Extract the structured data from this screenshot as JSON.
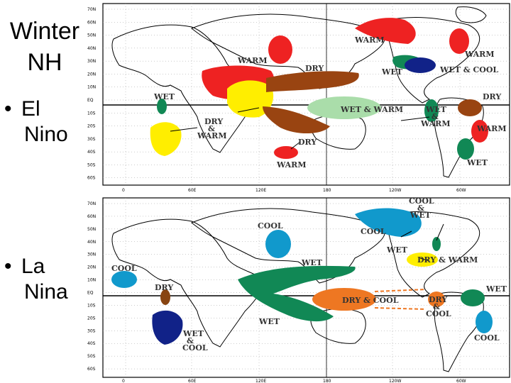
{
  "title": {
    "line1": "Winter",
    "line2": "NH"
  },
  "bullets": [
    {
      "line1": "El",
      "line2": "Nino"
    },
    {
      "line1": "La",
      "line2": "Nina"
    }
  ],
  "colors": {
    "warm": "#ee2222",
    "dry": "#994411",
    "wet": "#118855",
    "cool": "#1199cc",
    "yellow": "#ffee00",
    "navy": "#112288",
    "orange": "#ee7722",
    "lightgreen": "#aaddaa",
    "darkbrown": "#884411"
  },
  "axes": {
    "lat": [
      "70N",
      "60N",
      "50N",
      "40N",
      "30N",
      "20N",
      "10N",
      "EQ",
      "10S",
      "20S",
      "30S",
      "40S",
      "50S",
      "60S"
    ],
    "lon": [
      "0",
      "60E",
      "120E",
      "180",
      "120W",
      "60W"
    ]
  },
  "maps": {
    "el_nino": {
      "labels": {
        "warm_npac": "WARM",
        "warm_asia": "WARM",
        "dry_pac": "DRY",
        "warm_na": "WARM",
        "wet_us": "WET",
        "wet_cool": "WET & COOL",
        "wet_afr": "WET",
        "dry_sam": "DRY",
        "wet_warm": "WET & WARM",
        "wet_warm2_a": "WET",
        "wet_warm2_b": "&",
        "wet_warm2_c": "WARM",
        "dry_warm_a": "DRY",
        "dry_warm_b": "&",
        "dry_warm_c": "WARM",
        "dry_aus": "DRY",
        "warm_aus": "WARM",
        "warm_sam": "WARM",
        "wet_sam": "WET"
      }
    },
    "la_nina": {
      "labels": {
        "cool_top_a": "COOL",
        "cool_top_b": "&",
        "cool_top_c": "WET",
        "cool_na": "COOL",
        "cool_asia": "COOL",
        "wet_us": "WET",
        "dry_warm": "DRY & WARM",
        "wet_pac": "WET",
        "cool_afr": "COOL",
        "dry_afr": "DRY",
        "dry_cool": "DRY & COOL",
        "dry_cool2_a": "DRY",
        "dry_cool2_b": "&",
        "dry_cool2_c": "COOL",
        "wet_aus": "WET",
        "wet_afr_a": "WET",
        "wet_afr_b": "&",
        "wet_afr_c": "COOL",
        "wet_sam": "WET",
        "cool_sam": "COOL"
      }
    }
  }
}
